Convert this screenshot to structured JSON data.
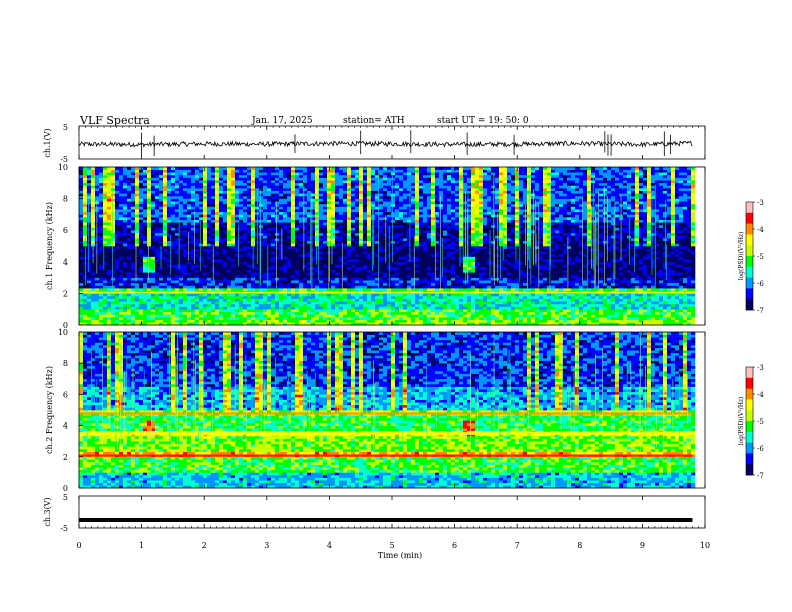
{
  "header": {
    "title": "VLF Spectra",
    "date": "Jan. 17, 2025",
    "station": "station= ATH",
    "start": "start  UT =   19: 50: 0"
  },
  "colorbar": {
    "label": "log(PSD)(V²/Hz)",
    "ticks": [
      "-3",
      "-4",
      "-5",
      "-6",
      "-7"
    ],
    "colors": [
      "#00005e",
      "#0000ff",
      "#0096ff",
      "#00ffcc",
      "#00ff00",
      "#c8ff00",
      "#ffff00",
      "#ff8c00",
      "#ff0000",
      "#ffc0c0"
    ]
  },
  "chart_data": [
    {
      "type": "line",
      "panel": "ch1-waveform",
      "ylabel": "ch.1(V)",
      "yticks": [
        "5",
        "-5"
      ],
      "ylim": [
        -5,
        5
      ],
      "x": [
        0,
        1,
        2,
        3,
        4,
        5,
        6,
        7,
        8,
        9,
        9.8
      ],
      "y": [
        -0.5,
        -0.6,
        -0.4,
        -0.5,
        -0.3,
        -0.4,
        -0.6,
        -0.5,
        -0.3,
        -0.6,
        -0.2
      ],
      "spikes_x": [
        1.0,
        1.2,
        3.45,
        4.5,
        5.3,
        6.2,
        6.95,
        8.4,
        8.45,
        8.5,
        9.35,
        9.45
      ]
    },
    {
      "type": "heatmap",
      "panel": "ch1-spectrogram",
      "ylabel": "ch.1 Frequency (kHz)",
      "yticks": [
        "0",
        "2",
        "4",
        "6",
        "8",
        "10"
      ],
      "ylim": [
        0,
        10
      ],
      "color_range": [
        -7,
        -3
      ],
      "events_min": [
        1.1,
        6.2
      ],
      "bands_khz": [
        [
          0.3,
          1.0,
          -5.2
        ],
        [
          1.0,
          1.8,
          -5.6
        ],
        [
          2.0,
          2.1,
          -4.6
        ],
        [
          3.0,
          4.8,
          -6.8
        ],
        [
          6.5,
          10,
          -6.4
        ]
      ]
    },
    {
      "type": "heatmap",
      "panel": "ch2-spectrogram",
      "ylabel": "ch.2 Frequency (kHz)",
      "yticks": [
        "0",
        "2",
        "4",
        "6",
        "8",
        "10"
      ],
      "ylim": [
        0,
        10
      ],
      "color_range": [
        -7,
        -3
      ],
      "events_min": [
        1.1,
        6.2
      ],
      "bands_khz": [
        [
          0.0,
          1.0,
          -5.8
        ],
        [
          1.0,
          3.0,
          -5.0
        ],
        [
          2.0,
          2.15,
          -3.8
        ],
        [
          3.4,
          3.6,
          -4.4
        ],
        [
          4.7,
          4.85,
          -4.2
        ],
        [
          6.5,
          10,
          -6.3
        ]
      ]
    },
    {
      "type": "line",
      "panel": "ch3-waveform",
      "ylabel": "ch.3(V)",
      "yticks": [
        "5",
        "-5"
      ],
      "ylim": [
        -5,
        5
      ],
      "x": [
        0,
        9.8
      ],
      "y": [
        -2.5,
        -2.5
      ]
    }
  ],
  "xaxis": {
    "label": "Time (min)",
    "ticks": [
      "0",
      "1",
      "2",
      "3",
      "4",
      "5",
      "6",
      "7",
      "8",
      "9",
      "10"
    ],
    "lim": [
      0,
      10
    ]
  }
}
